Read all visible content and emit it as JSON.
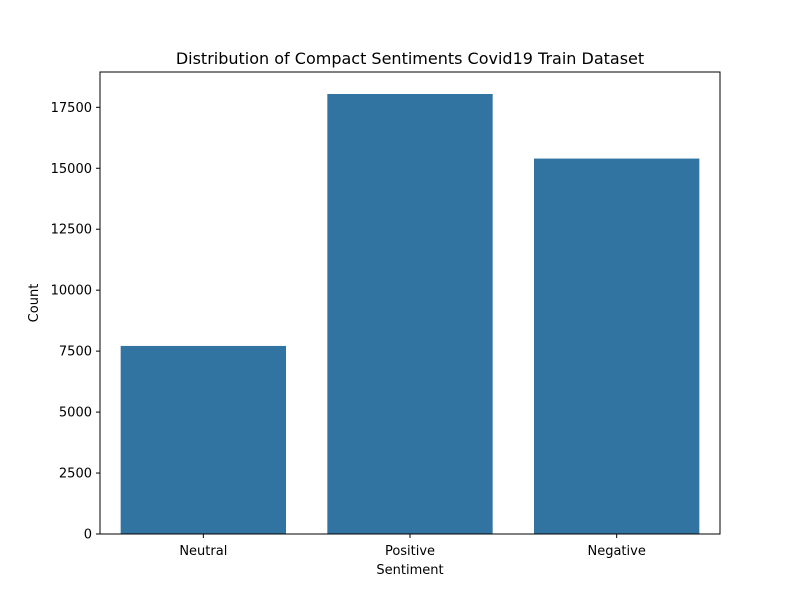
{
  "chart_data": {
    "type": "bar",
    "title": "Distribution of Compact Sentiments Covid19 Train Dataset",
    "xlabel": "Sentiment",
    "ylabel": "Count",
    "categories": [
      "Neutral",
      "Positive",
      "Negative"
    ],
    "values": [
      7713,
      18046,
      15398
    ],
    "ylim": [
      0,
      18948
    ],
    "yticks": [
      0,
      2500,
      5000,
      7500,
      10000,
      12500,
      15000,
      17500
    ],
    "ytick_labels": [
      "0",
      "2500",
      "5000",
      "7500",
      "10000",
      "12500",
      "15000",
      "17500"
    ],
    "grid": false,
    "legend": "none",
    "bar_color": "#3274a1"
  }
}
